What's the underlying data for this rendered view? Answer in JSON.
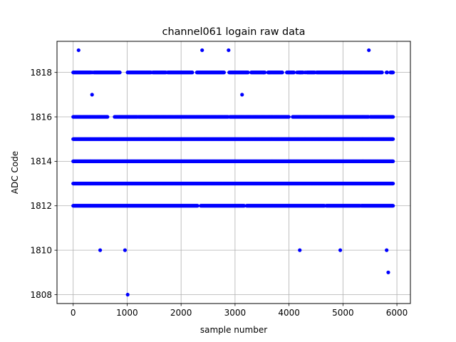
{
  "chart_data": {
    "type": "scatter",
    "title": "channel061 logain raw data",
    "xlabel": "sample number",
    "ylabel": "ADC Code",
    "xlim": [
      -300,
      6250
    ],
    "ylim": [
      1807.6,
      1819.4
    ],
    "xticks": [
      0,
      1000,
      2000,
      3000,
      4000,
      5000,
      6000
    ],
    "xtick_labels": [
      "0",
      "1000",
      "2000",
      "3000",
      "4000",
      "5000",
      "6000"
    ],
    "yticks": [
      1808,
      1810,
      1812,
      1814,
      1816,
      1818
    ],
    "ytick_labels": [
      "1808",
      "1810",
      "1812",
      "1814",
      "1816",
      "1818"
    ],
    "grid": true,
    "marker_color": "#0000ff",
    "series": [
      {
        "dense_bands": [
          {
            "y": 1812,
            "x_start": 0,
            "x_end": 5930,
            "gaps": [
              [
                2310,
                2360
              ],
              [
                3180,
                3210
              ],
              [
                4660,
                4680
              ],
              [
                5320,
                5330
              ]
            ]
          },
          {
            "y": 1813,
            "x_start": 0,
            "x_end": 5930,
            "gaps": []
          },
          {
            "y": 1814,
            "x_start": 0,
            "x_end": 5930,
            "gaps": []
          },
          {
            "y": 1815,
            "x_start": 0,
            "x_end": 5930,
            "gaps": []
          },
          {
            "y": 1816,
            "x_start": 0,
            "x_end": 5930,
            "gaps": [
              [
                640,
                760
              ],
              [
                1190,
                1210
              ],
              [
                2880,
                2900
              ],
              [
                4000,
                4060
              ],
              [
                5480,
                5500
              ]
            ]
          },
          {
            "y": 1818,
            "x_start": 0,
            "x_end": 5930,
            "gaps": [
              [
                330,
                380
              ],
              [
                870,
                1000
              ],
              [
                1450,
                1470
              ],
              [
                1720,
                1740
              ],
              [
                2220,
                2280
              ],
              [
                2800,
                2880
              ],
              [
                3250,
                3290
              ],
              [
                3560,
                3600
              ],
              [
                3880,
                3950
              ],
              [
                4100,
                4170
              ],
              [
                4270,
                4320
              ],
              [
                4480,
                4500
              ],
              [
                4970,
                4990
              ],
              [
                5730,
                5800
              ],
              [
                5830,
                5870
              ]
            ]
          }
        ],
        "sparse_points": [
          {
            "x": 100,
            "y": 1819
          },
          {
            "x": 2390,
            "y": 1819
          },
          {
            "x": 2880,
            "y": 1819
          },
          {
            "x": 5480,
            "y": 1819
          },
          {
            "x": 350,
            "y": 1818
          },
          {
            "x": 3530,
            "y": 1818
          },
          {
            "x": 3630,
            "y": 1818
          },
          {
            "x": 4150,
            "y": 1818
          },
          {
            "x": 4210,
            "y": 1818
          },
          {
            "x": 4300,
            "y": 1818
          },
          {
            "x": 5910,
            "y": 1818
          },
          {
            "x": 350,
            "y": 1817
          },
          {
            "x": 3130,
            "y": 1817
          },
          {
            "x": 500,
            "y": 1810
          },
          {
            "x": 960,
            "y": 1810
          },
          {
            "x": 4200,
            "y": 1810
          },
          {
            "x": 4950,
            "y": 1810
          },
          {
            "x": 5810,
            "y": 1810
          },
          {
            "x": 5840,
            "y": 1809
          },
          {
            "x": 1010,
            "y": 1808
          }
        ]
      }
    ]
  }
}
